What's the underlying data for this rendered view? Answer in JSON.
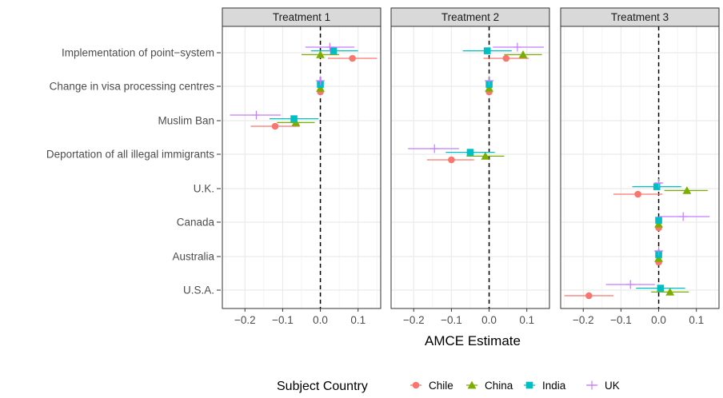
{
  "chart_data": {
    "type": "scatter",
    "subtype": "coefficient-plot-with-error-bars",
    "xlabel": "AMCE Estimate",
    "xlim": [
      -0.26,
      0.16
    ],
    "xticks": [
      -0.2,
      -0.1,
      0.0,
      0.1
    ],
    "xtick_labels": [
      "−0.2",
      "−0.1",
      "0.0",
      "0.1"
    ],
    "reference_line_x": 0,
    "grid": true,
    "categories": [
      "Implementation of point−system",
      "Change in visa processing centres",
      "Muslim Ban",
      "Deportation of all illegal immigrants",
      "U.K.",
      "Canada",
      "Australia",
      "U.S.A."
    ],
    "legend": {
      "title": "Subject Country",
      "position": "bottom",
      "entries": [
        {
          "name": "Chile",
          "color": "#F8766D",
          "shape": "circle"
        },
        {
          "name": "China",
          "color": "#7CAE00",
          "shape": "triangle"
        },
        {
          "name": "India",
          "color": "#00BFC4",
          "shape": "square"
        },
        {
          "name": "UK",
          "color": "#C77CFF",
          "shape": "plus"
        }
      ]
    },
    "panels": [
      {
        "title": "Treatment 1",
        "series": [
          {
            "name": "Chile",
            "points": [
              {
                "category": "Implementation of point−system",
                "est": 0.085,
                "lo": 0.02,
                "hi": 0.15
              },
              {
                "category": "Change in visa processing centres",
                "est": 0.0,
                "lo": 0.0,
                "hi": 0.0
              },
              {
                "category": "Muslim Ban",
                "est": -0.12,
                "lo": -0.185,
                "hi": -0.055
              }
            ]
          },
          {
            "name": "China",
            "points": [
              {
                "category": "Implementation of point−system",
                "est": 0.0,
                "lo": -0.05,
                "hi": 0.05
              },
              {
                "category": "Change in visa processing centres",
                "est": 0.0,
                "lo": 0.0,
                "hi": 0.0
              },
              {
                "category": "Muslim Ban",
                "est": -0.065,
                "lo": -0.115,
                "hi": -0.015
              }
            ]
          },
          {
            "name": "India",
            "points": [
              {
                "category": "Implementation of point−system",
                "est": 0.035,
                "lo": -0.025,
                "hi": 0.1
              },
              {
                "category": "Change in visa processing centres",
                "est": 0.0,
                "lo": 0.0,
                "hi": 0.0
              },
              {
                "category": "Muslim Ban",
                "est": -0.07,
                "lo": -0.135,
                "hi": -0.005
              }
            ]
          },
          {
            "name": "UK",
            "points": [
              {
                "category": "Implementation of point−system",
                "est": 0.025,
                "lo": -0.04,
                "hi": 0.09
              },
              {
                "category": "Change in visa processing centres",
                "est": 0.0,
                "lo": 0.0,
                "hi": 0.0
              },
              {
                "category": "Muslim Ban",
                "est": -0.17,
                "lo": -0.24,
                "hi": -0.105
              }
            ]
          }
        ]
      },
      {
        "title": "Treatment 2",
        "series": [
          {
            "name": "Chile",
            "points": [
              {
                "category": "Implementation of point−system",
                "est": 0.045,
                "lo": -0.015,
                "hi": 0.105
              },
              {
                "category": "Change in visa processing centres",
                "est": 0.0,
                "lo": 0.0,
                "hi": 0.0
              },
              {
                "category": "Deportation of all illegal immigrants",
                "est": -0.1,
                "lo": -0.165,
                "hi": -0.04
              }
            ]
          },
          {
            "name": "China",
            "points": [
              {
                "category": "Implementation of point−system",
                "est": 0.09,
                "lo": 0.04,
                "hi": 0.14
              },
              {
                "category": "Change in visa processing centres",
                "est": 0.0,
                "lo": 0.0,
                "hi": 0.0
              },
              {
                "category": "Deportation of all illegal immigrants",
                "est": -0.01,
                "lo": -0.06,
                "hi": 0.04
              }
            ]
          },
          {
            "name": "India",
            "points": [
              {
                "category": "Implementation of point−system",
                "est": -0.005,
                "lo": -0.07,
                "hi": 0.06
              },
              {
                "category": "Change in visa processing centres",
                "est": 0.0,
                "lo": 0.0,
                "hi": 0.0
              },
              {
                "category": "Deportation of all illegal immigrants",
                "est": -0.05,
                "lo": -0.115,
                "hi": 0.015
              }
            ]
          },
          {
            "name": "UK",
            "points": [
              {
                "category": "Implementation of point−system",
                "est": 0.075,
                "lo": 0.01,
                "hi": 0.145
              },
              {
                "category": "Change in visa processing centres",
                "est": 0.0,
                "lo": 0.0,
                "hi": 0.0
              },
              {
                "category": "Deportation of all illegal immigrants",
                "est": -0.145,
                "lo": -0.215,
                "hi": -0.08
              }
            ]
          }
        ]
      },
      {
        "title": "Treatment 3",
        "series": [
          {
            "name": "Chile",
            "points": [
              {
                "category": "U.K.",
                "est": -0.055,
                "lo": -0.12,
                "hi": 0.01
              },
              {
                "category": "Canada",
                "est": 0.0,
                "lo": 0.0,
                "hi": 0.0
              },
              {
                "category": "Australia",
                "est": 0.0,
                "lo": 0.0,
                "hi": 0.0
              },
              {
                "category": "U.S.A.",
                "est": -0.185,
                "lo": -0.25,
                "hi": -0.12
              }
            ]
          },
          {
            "name": "China",
            "points": [
              {
                "category": "U.K.",
                "est": 0.075,
                "lo": 0.015,
                "hi": 0.13
              },
              {
                "category": "Canada",
                "est": 0.0,
                "lo": 0.0,
                "hi": 0.0
              },
              {
                "category": "Australia",
                "est": 0.0,
                "lo": 0.0,
                "hi": 0.0
              },
              {
                "category": "U.S.A.",
                "est": 0.03,
                "lo": -0.02,
                "hi": 0.08
              }
            ]
          },
          {
            "name": "India",
            "points": [
              {
                "category": "U.K.",
                "est": -0.005,
                "lo": -0.07,
                "hi": 0.06
              },
              {
                "category": "Canada",
                "est": 0.0,
                "lo": 0.0,
                "hi": 0.0
              },
              {
                "category": "Australia",
                "est": 0.0,
                "lo": 0.0,
                "hi": 0.0
              },
              {
                "category": "U.S.A.",
                "est": 0.005,
                "lo": -0.06,
                "hi": 0.07
              }
            ]
          },
          {
            "name": "UK",
            "points": [
              {
                "category": "U.K.",
                "est": 0.0,
                "lo": -0.01,
                "hi": 0.01
              },
              {
                "category": "Canada",
                "est": 0.065,
                "lo": 0.0,
                "hi": 0.135
              },
              {
                "category": "Australia",
                "est": 0.0,
                "lo": -0.01,
                "hi": 0.01
              },
              {
                "category": "U.S.A.",
                "est": -0.075,
                "lo": -0.14,
                "hi": -0.01
              }
            ]
          }
        ]
      }
    ]
  }
}
